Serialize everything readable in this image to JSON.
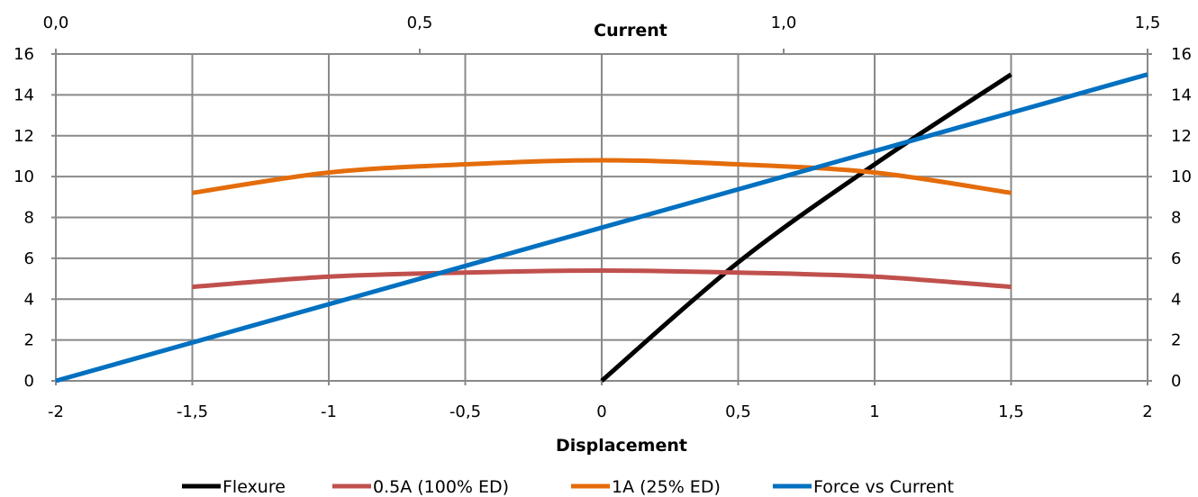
{
  "chart_data": {
    "type": "line",
    "title": "",
    "xlabel": "Displacement",
    "x2label": "Current",
    "ylabel": "",
    "xlim": [
      -2,
      2
    ],
    "x2lim": [
      0,
      1.5
    ],
    "ylim": [
      0,
      16
    ],
    "x_ticks": [
      "-2",
      "-1,5",
      "-1",
      "-0,5",
      "0",
      "0,5",
      "1",
      "1,5",
      "2"
    ],
    "x2_ticks": [
      "0,0",
      "0,5",
      "1,0",
      "1,5"
    ],
    "y_ticks": [
      "0",
      "2",
      "4",
      "6",
      "8",
      "10",
      "12",
      "14",
      "16"
    ],
    "y2_ticks": [
      "0",
      "2",
      "4",
      "6",
      "8",
      "10",
      "12",
      "14",
      "16"
    ],
    "grid": true,
    "legend_position": "bottom",
    "series": [
      {
        "name": "Flexure",
        "color": "#000000",
        "axis": "primary",
        "x": [
          0,
          0.5,
          1,
          1.5
        ],
        "y": [
          0,
          5.8,
          10.6,
          15
        ]
      },
      {
        "name": "0.5A (100% ED)",
        "color": "#C0504D",
        "axis": "primary",
        "x": [
          -1.5,
          -1,
          -0.5,
          0,
          0.5,
          1,
          1.5
        ],
        "y": [
          4.6,
          5.1,
          5.3,
          5.4,
          5.3,
          5.1,
          4.6
        ]
      },
      {
        "name": "1A (25% ED)",
        "color": "#E46C0A",
        "axis": "primary",
        "x": [
          -1.5,
          -1,
          -0.5,
          0,
          0.5,
          1,
          1.5
        ],
        "y": [
          9.2,
          10.2,
          10.6,
          10.8,
          10.6,
          10.2,
          9.2
        ]
      },
      {
        "name": "Force vs Current",
        "color": "#0070C0",
        "axis": "secondary",
        "x": [
          0,
          1.5
        ],
        "y": [
          0,
          15
        ]
      }
    ]
  }
}
